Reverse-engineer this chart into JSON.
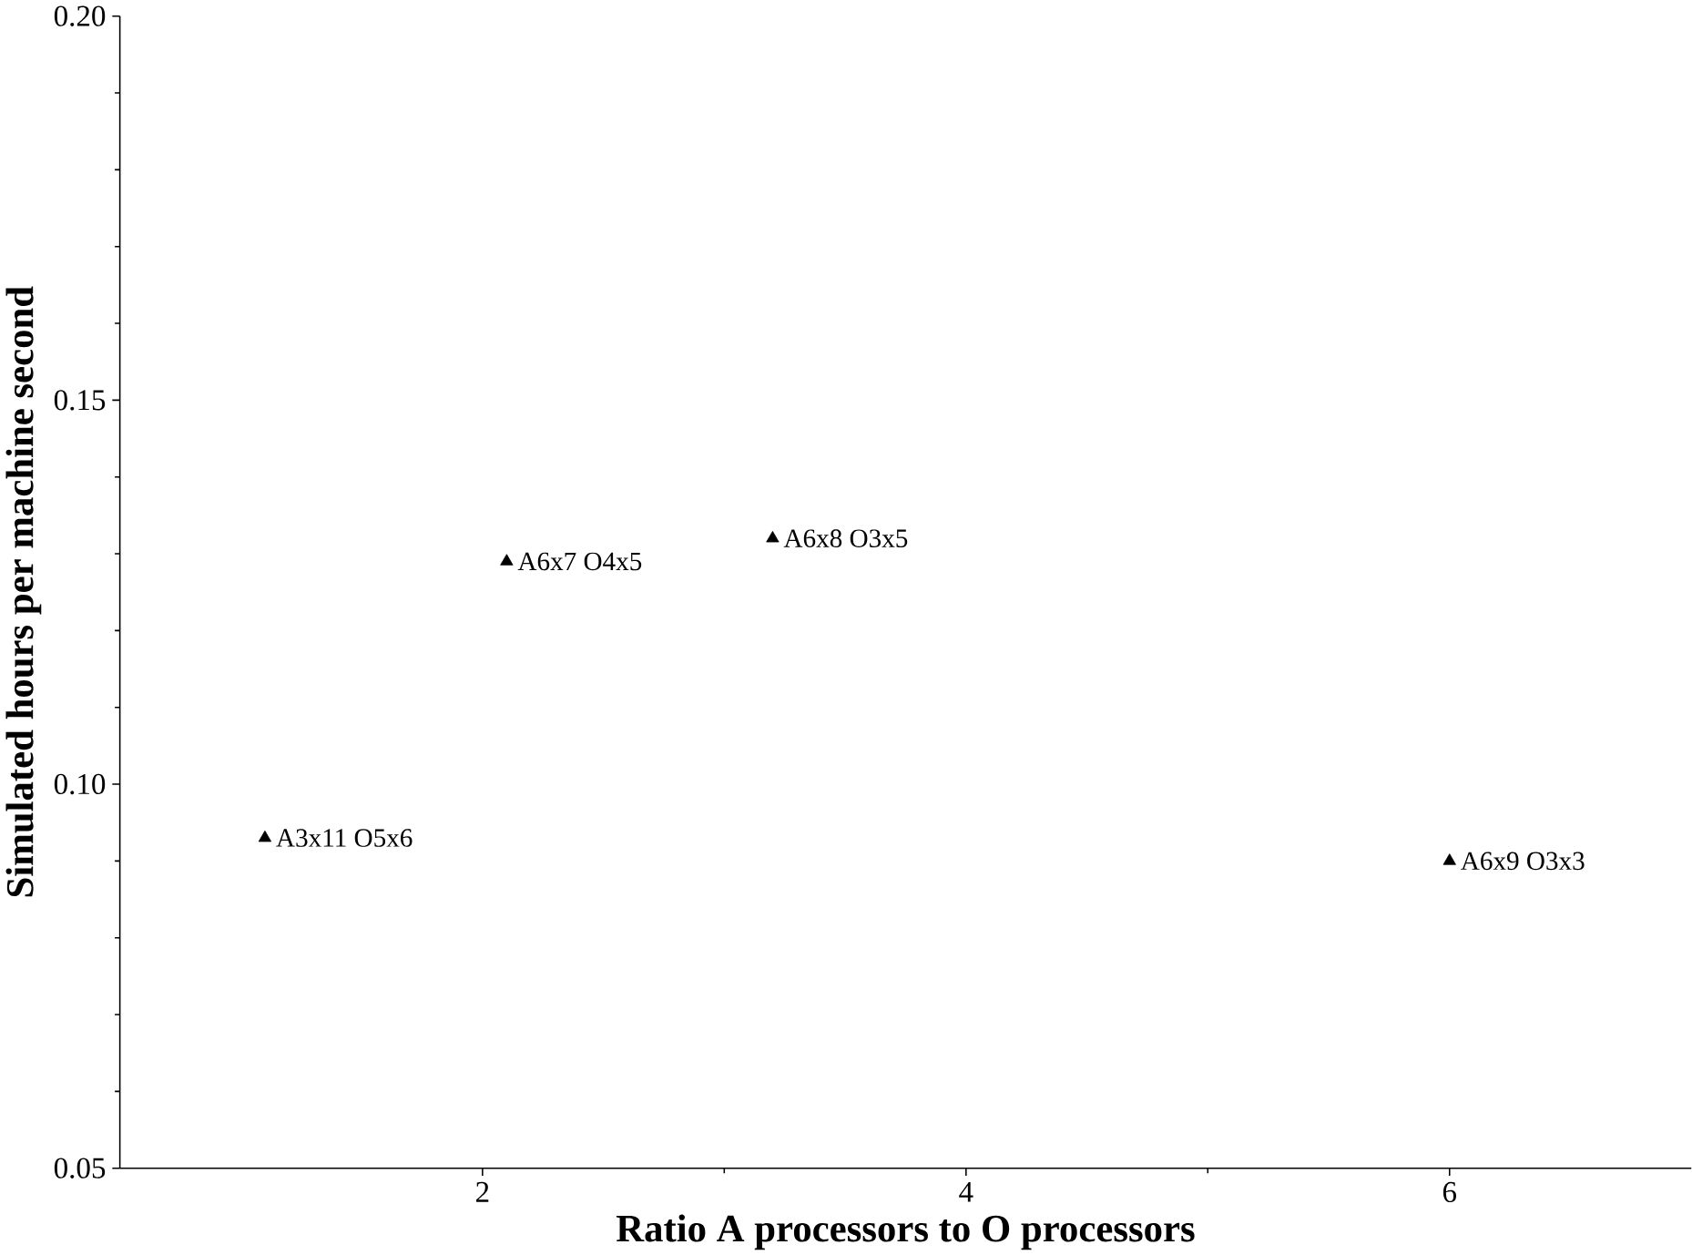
{
  "chart_data": {
    "type": "scatter",
    "xlabel": "Ratio A processors to O processors",
    "ylabel": "Simulated hours per machine second",
    "x": [
      1.1,
      2.1,
      3.2,
      6.0
    ],
    "values": [
      0.093,
      0.129,
      0.132,
      0.09
    ],
    "color": "#000000",
    "marker": "triangle",
    "xlim": [
      0.5,
      7
    ],
    "xticks": [
      2,
      4,
      6
    ],
    "ylim": [
      0.05,
      0.2
    ],
    "yticks": [
      {
        "value": 0.05,
        "label": "0.05"
      },
      {
        "value": 0.1,
        "label": "0.10"
      },
      {
        "value": 0.15,
        "label": "0.15"
      },
      {
        "value": 0.2,
        "label": "0.20"
      }
    ],
    "annotations": [
      {
        "text": "A3x11 O5x6",
        "x": 1.1,
        "y": 0.093
      },
      {
        "text": "A6x7 O4x5",
        "x": 2.1,
        "y": 0.129
      },
      {
        "text": "A6x8 O3x5",
        "x": 3.2,
        "y": 0.132
      },
      {
        "text": "A6x9 O3x3",
        "x": 6.0,
        "y": 0.09
      }
    ]
  }
}
